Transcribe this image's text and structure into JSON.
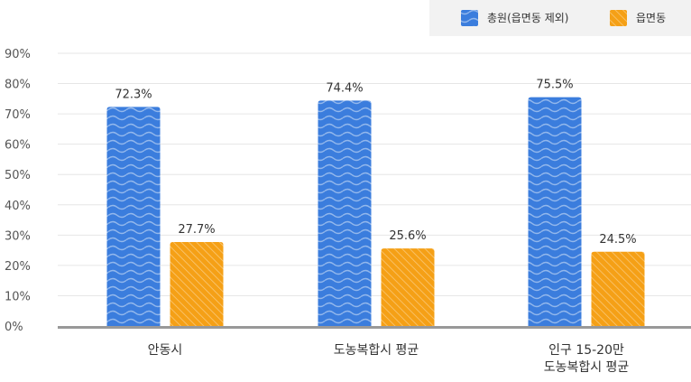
{
  "chart_data": {
    "type": "bar",
    "categories": [
      [
        "안동시"
      ],
      [
        "도농복합시 평균"
      ],
      [
        "인구 15-20만",
        "도농복합시 평균"
      ]
    ],
    "series": [
      {
        "name": "총원(읍면동 제외)",
        "values": [
          72.3,
          74.4,
          75.5
        ],
        "labels": [
          "72.3%",
          "74.4%",
          "75.5%"
        ],
        "color": "#3b7ddd"
      },
      {
        "name": "읍면동",
        "values": [
          27.7,
          25.6,
          24.5
        ],
        "labels": [
          "27.7%",
          "25.6%",
          "24.5%"
        ],
        "color": "#f5a016"
      }
    ],
    "y_ticks": [
      "0%",
      "10%",
      "20%",
      "30%",
      "40%",
      "50%",
      "60%",
      "70%",
      "80%",
      "90%"
    ],
    "ylim": [
      0,
      90
    ],
    "grid": true,
    "legend_position": "top-right",
    "legend_background": "#f2f2f2",
    "axis_color": "#999999"
  }
}
